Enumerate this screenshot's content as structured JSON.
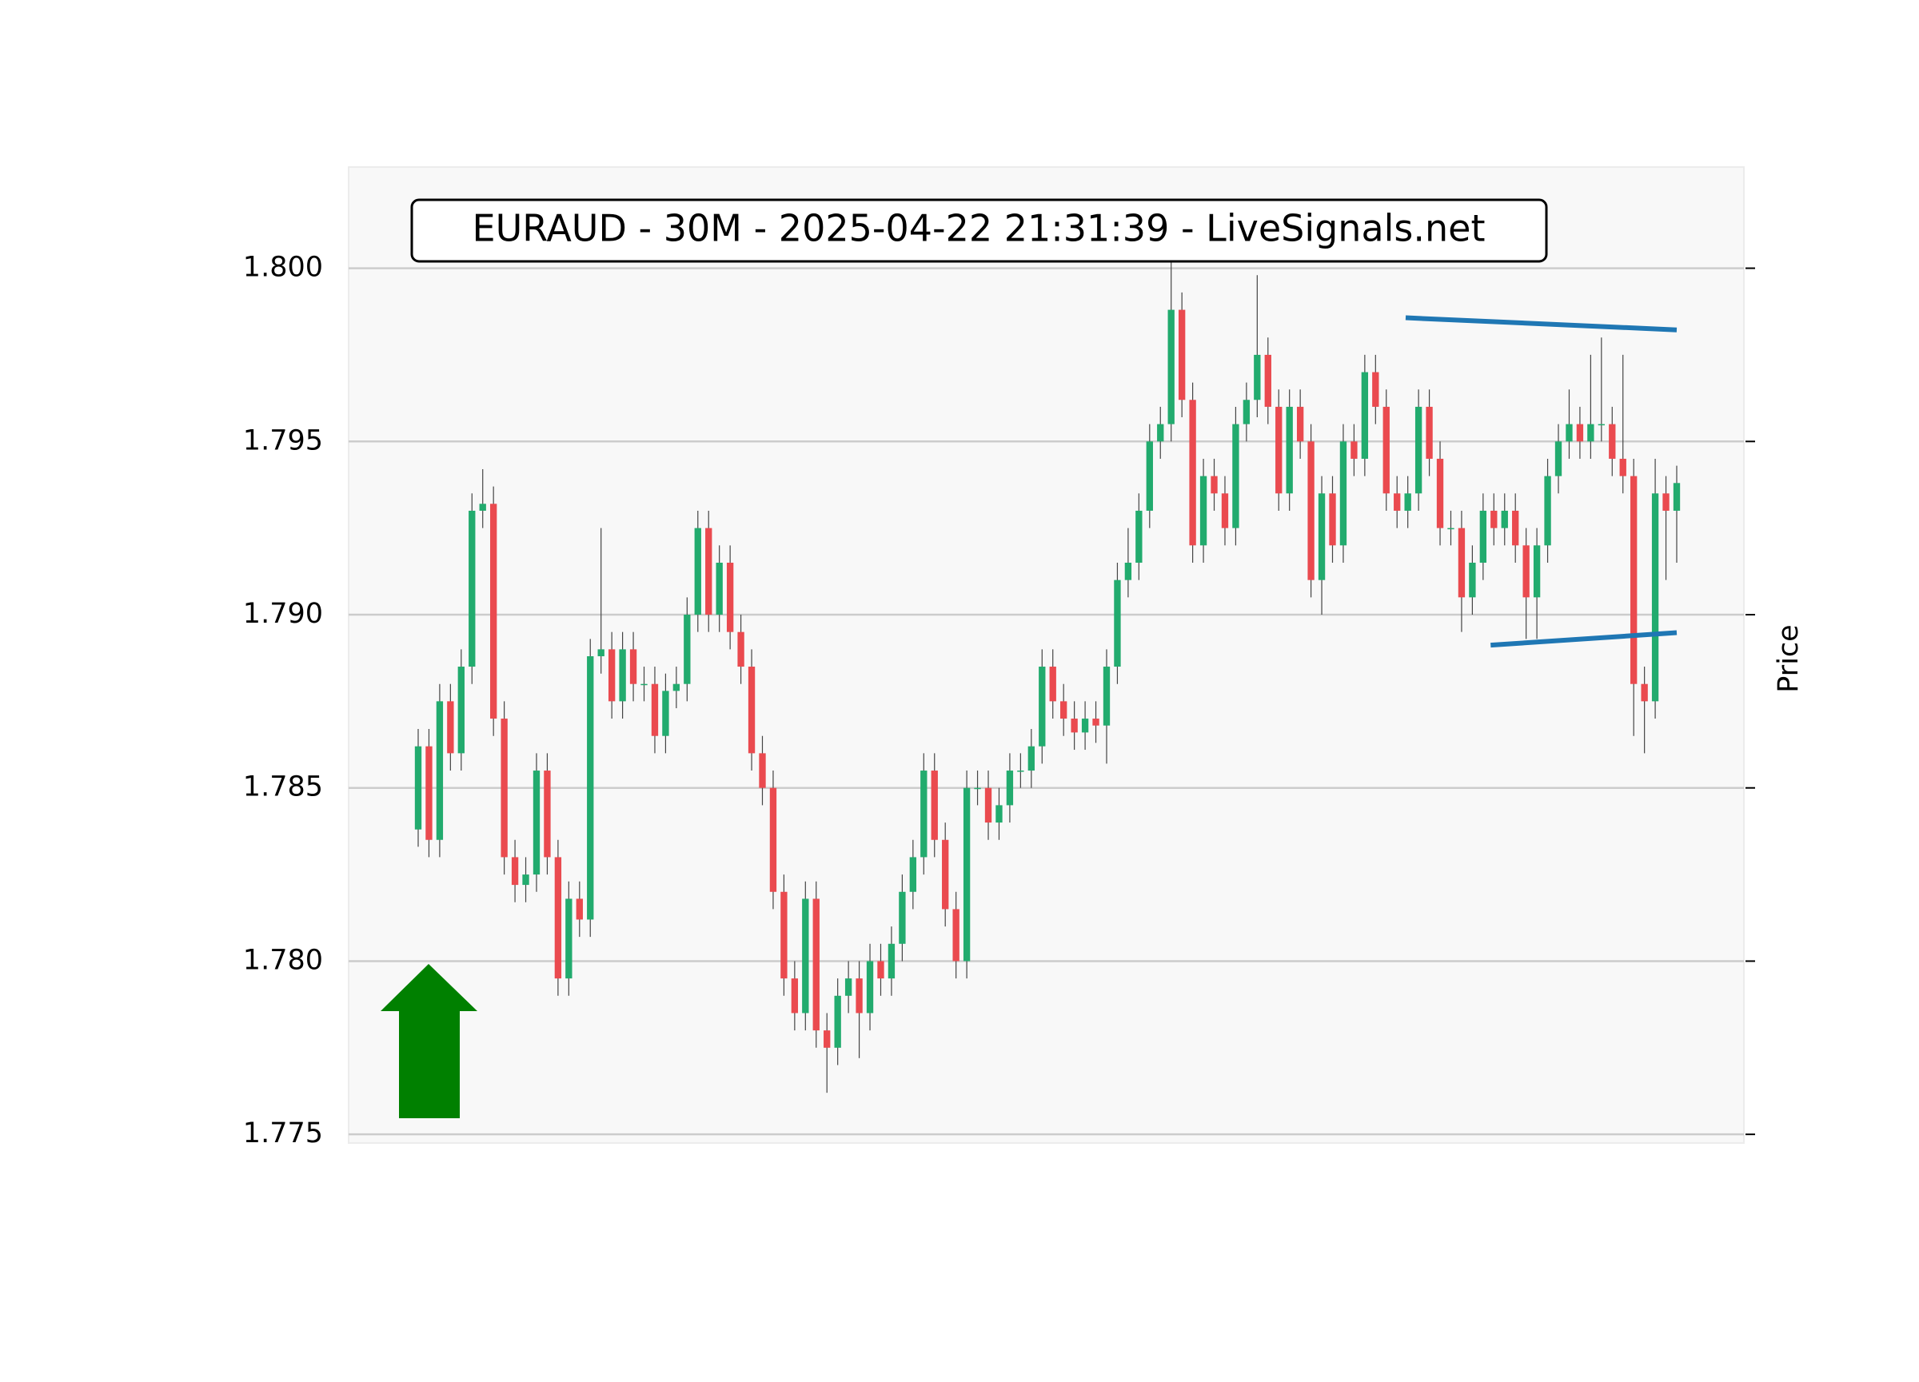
{
  "chart_data": {
    "type": "candlestick",
    "title": "EURAUD - 30M - 2025-04-22 21:31:39 - LiveSignals.net",
    "y_label": "Price",
    "ylim": [
      1.77475,
      1.80292
    ],
    "yticks": [
      {
        "value": 1.775,
        "label": "1.775"
      },
      {
        "value": 1.78,
        "label": "1.780"
      },
      {
        "value": 1.785,
        "label": "1.785"
      },
      {
        "value": 1.79,
        "label": "1.790"
      },
      {
        "value": 1.795,
        "label": "1.795"
      },
      {
        "value": 1.8,
        "label": "1.800"
      }
    ],
    "grid": true,
    "up_color": "#22ab6e",
    "down_color": "#ea4a4f",
    "open": [
      1.7838,
      1.7862,
      1.7835,
      1.7875,
      1.786,
      1.7885,
      1.793,
      1.7932,
      1.787,
      1.783,
      1.7822,
      1.7825,
      1.7855,
      1.783,
      1.7795,
      1.7818,
      1.7812,
      1.7888,
      1.789,
      1.7875,
      1.789,
      1.788,
      1.788,
      1.7865,
      1.7878,
      1.788,
      1.79,
      1.7925,
      1.79,
      1.7915,
      1.7895,
      1.7885,
      1.786,
      1.785,
      1.782,
      1.7795,
      1.7785,
      1.7818,
      1.778,
      1.7775,
      1.779,
      1.7795,
      1.7785,
      1.78,
      1.7795,
      1.7805,
      1.782,
      1.783,
      1.7855,
      1.7835,
      1.7815,
      1.78,
      1.785,
      1.785,
      1.784,
      1.7845,
      1.7855,
      1.7855,
      1.7862,
      1.7885,
      1.7875,
      1.787,
      1.7866,
      1.787,
      1.7868,
      1.7885,
      1.791,
      1.7915,
      1.793,
      1.795,
      1.7955,
      1.7988,
      1.7962,
      1.792,
      1.794,
      1.7935,
      1.7925,
      1.7955,
      1.7962,
      1.7975,
      1.796,
      1.7935,
      1.796,
      1.795,
      1.791,
      1.7935,
      1.792,
      1.795,
      1.7945,
      1.797,
      1.796,
      1.7935,
      1.793,
      1.7935,
      1.796,
      1.7945,
      1.7925,
      1.7925,
      1.7905,
      1.7915,
      1.793,
      1.7925,
      1.793,
      1.792,
      1.7905,
      1.792,
      1.794,
      1.795,
      1.7955,
      1.795,
      1.7955,
      1.7955,
      1.7945,
      1.794,
      1.788,
      1.7875,
      1.7935,
      1.793
    ],
    "high": [
      1.7867,
      1.7867,
      1.788,
      1.788,
      1.789,
      1.7935,
      1.7942,
      1.7937,
      1.7875,
      1.7835,
      1.783,
      1.786,
      1.786,
      1.7835,
      1.7823,
      1.7823,
      1.7893,
      1.7925,
      1.7895,
      1.7895,
      1.7895,
      1.7885,
      1.7885,
      1.7883,
      1.7885,
      1.7905,
      1.793,
      1.793,
      1.792,
      1.792,
      1.79,
      1.789,
      1.7865,
      1.7855,
      1.7825,
      1.78,
      1.7823,
      1.7823,
      1.7785,
      1.7795,
      1.78,
      1.78,
      1.7805,
      1.7805,
      1.781,
      1.7825,
      1.7835,
      1.786,
      1.786,
      1.784,
      1.782,
      1.7855,
      1.7855,
      1.7855,
      1.785,
      1.786,
      1.786,
      1.7867,
      1.789,
      1.789,
      1.788,
      1.7875,
      1.7875,
      1.7875,
      1.789,
      1.7915,
      1.7925,
      1.7935,
      1.7955,
      1.796,
      1.8005,
      1.7993,
      1.7967,
      1.7945,
      1.7945,
      1.794,
      1.796,
      1.7967,
      1.7998,
      1.798,
      1.7965,
      1.7965,
      1.7965,
      1.7955,
      1.794,
      1.794,
      1.7955,
      1.7955,
      1.7975,
      1.7975,
      1.7965,
      1.794,
      1.794,
      1.7965,
      1.7965,
      1.795,
      1.793,
      1.793,
      1.792,
      1.7935,
      1.7935,
      1.7935,
      1.7935,
      1.7925,
      1.7925,
      1.7945,
      1.7955,
      1.7965,
      1.796,
      1.7975,
      1.798,
      1.796,
      1.7975,
      1.7945,
      1.7885,
      1.7945,
      1.794,
      1.7943
    ],
    "low": [
      1.7833,
      1.783,
      1.783,
      1.7855,
      1.7855,
      1.788,
      1.7925,
      1.7865,
      1.7825,
      1.7817,
      1.7817,
      1.782,
      1.7825,
      1.779,
      1.779,
      1.7807,
      1.7807,
      1.7883,
      1.787,
      1.787,
      1.7875,
      1.7875,
      1.786,
      1.786,
      1.7873,
      1.7875,
      1.7895,
      1.7895,
      1.7895,
      1.789,
      1.788,
      1.7855,
      1.7845,
      1.7815,
      1.779,
      1.778,
      1.778,
      1.7775,
      1.7762,
      1.777,
      1.7785,
      1.7772,
      1.778,
      1.779,
      1.779,
      1.78,
      1.7815,
      1.7825,
      1.783,
      1.781,
      1.7795,
      1.7795,
      1.7845,
      1.7835,
      1.7835,
      1.784,
      1.785,
      1.785,
      1.7857,
      1.787,
      1.7865,
      1.7861,
      1.7861,
      1.7863,
      1.7857,
      1.788,
      1.7905,
      1.791,
      1.7925,
      1.7945,
      1.795,
      1.7957,
      1.7915,
      1.7915,
      1.793,
      1.792,
      1.792,
      1.795,
      1.7957,
      1.7955,
      1.793,
      1.793,
      1.7945,
      1.7905,
      1.79,
      1.7915,
      1.7915,
      1.794,
      1.794,
      1.7955,
      1.793,
      1.7925,
      1.7925,
      1.793,
      1.794,
      1.792,
      1.792,
      1.7895,
      1.79,
      1.791,
      1.792,
      1.792,
      1.7915,
      1.7893,
      1.7893,
      1.7915,
      1.7935,
      1.7945,
      1.7945,
      1.7945,
      1.795,
      1.794,
      1.7935,
      1.7865,
      1.786,
      1.787,
      1.791,
      1.7915
    ],
    "close": [
      1.7862,
      1.7835,
      1.7875,
      1.786,
      1.7885,
      1.793,
      1.7932,
      1.787,
      1.783,
      1.7822,
      1.7825,
      1.7855,
      1.783,
      1.7795,
      1.7818,
      1.7812,
      1.7888,
      1.789,
      1.7875,
      1.789,
      1.788,
      1.788,
      1.7865,
      1.7878,
      1.788,
      1.79,
      1.7925,
      1.79,
      1.7915,
      1.7895,
      1.7885,
      1.786,
      1.785,
      1.782,
      1.7795,
      1.7785,
      1.7818,
      1.778,
      1.7775,
      1.779,
      1.7795,
      1.7785,
      1.78,
      1.7795,
      1.7805,
      1.782,
      1.783,
      1.7855,
      1.7835,
      1.7815,
      1.78,
      1.785,
      1.785,
      1.784,
      1.7845,
      1.7855,
      1.7855,
      1.7862,
      1.7885,
      1.7875,
      1.787,
      1.7866,
      1.787,
      1.7868,
      1.7885,
      1.791,
      1.7915,
      1.793,
      1.795,
      1.7955,
      1.7988,
      1.7962,
      1.792,
      1.794,
      1.7935,
      1.7925,
      1.7955,
      1.7962,
      1.7975,
      1.796,
      1.7935,
      1.796,
      1.795,
      1.791,
      1.7935,
      1.792,
      1.795,
      1.7945,
      1.797,
      1.796,
      1.7935,
      1.793,
      1.7935,
      1.796,
      1.7945,
      1.7925,
      1.7925,
      1.7905,
      1.7915,
      1.793,
      1.7925,
      1.793,
      1.792,
      1.7905,
      1.792,
      1.794,
      1.795,
      1.7955,
      1.795,
      1.7955,
      1.7955,
      1.7945,
      1.794,
      1.788,
      1.7875,
      1.7935,
      1.793,
      1.7938
    ],
    "trendlines": [
      {
        "x": [
          91.8,
          117
        ],
        "y": [
          1.79857,
          1.79822
        ],
        "color": "#1f77b4"
      },
      {
        "x": [
          99.7,
          117
        ],
        "y": [
          1.78912,
          1.78948
        ],
        "color": "#1f77b4"
      }
    ]
  }
}
